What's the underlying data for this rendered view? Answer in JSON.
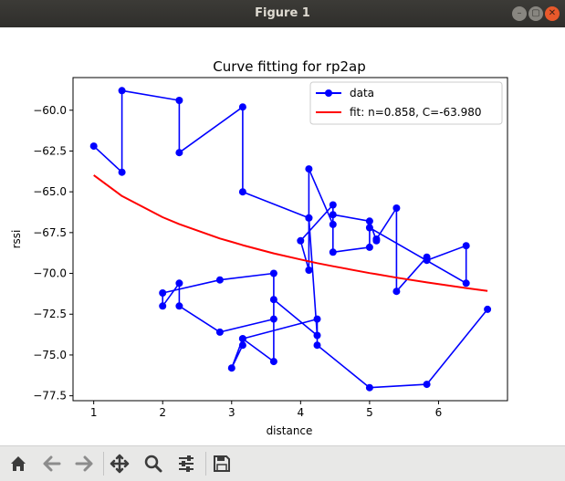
{
  "window": {
    "title": "Figure 1"
  },
  "toolbar": {
    "buttons": [
      {
        "name": "home-button",
        "icon": "home-icon"
      },
      {
        "name": "back-button",
        "icon": "arrow-left-icon"
      },
      {
        "name": "forward-button",
        "icon": "arrow-right-icon"
      },
      {
        "name": "pan-button",
        "icon": "move-icon"
      },
      {
        "name": "zoom-button",
        "icon": "magnifier-icon"
      },
      {
        "name": "configure-subplots-button",
        "icon": "sliders-icon"
      },
      {
        "name": "save-button",
        "icon": "floppy-disk-icon"
      }
    ]
  },
  "chart_data": {
    "type": "line",
    "title": "Curve fitting for rp2ap",
    "xlabel": "distance",
    "ylabel": "rssi",
    "xlim": [
      0.7,
      7.0
    ],
    "ylim": [
      -77.8,
      -58.0
    ],
    "xticks": [
      1,
      2,
      3,
      4,
      5,
      6
    ],
    "yticks": [
      -60.0,
      -62.5,
      -65.0,
      -67.5,
      -70.0,
      -72.5,
      -75.0,
      -77.5
    ],
    "ytick_labels": [
      "−60.0",
      "−62.5",
      "−65.0",
      "−67.5",
      "−70.0",
      "−72.5",
      "−75.0",
      "−77.5"
    ],
    "legend_position": "top-right",
    "grid": false,
    "series": [
      {
        "name": "data",
        "color": "#0000ff",
        "marker": "circle",
        "x": [
          1.0,
          1.41,
          1.41,
          2.24,
          2.24,
          3.16,
          3.16,
          4.12,
          4.12,
          4.47,
          4.47,
          5.0,
          5.1,
          5.1,
          5.39,
          5.39,
          5.83,
          5.83,
          6.4,
          6.4,
          5.0,
          5.0,
          4.47,
          4.47,
          4.0,
          4.12,
          4.12,
          4.24,
          3.61,
          3.61,
          2.83,
          2.24,
          2.24,
          2.0,
          2.0,
          2.83,
          3.61,
          3.61,
          3.16,
          3.0,
          3.16,
          3.16,
          4.24,
          4.24,
          5.0,
          5.83,
          6.71
        ],
        "y": [
          -62.2,
          -63.8,
          -58.8,
          -59.4,
          -62.6,
          -59.8,
          -65.0,
          -66.6,
          -63.6,
          -67.0,
          -66.4,
          -66.8,
          -68.0,
          -67.9,
          -66.0,
          -71.1,
          -69.0,
          -69.2,
          -68.3,
          -70.6,
          -67.2,
          -68.4,
          -68.7,
          -65.8,
          -68.0,
          -69.8,
          -66.6,
          -73.8,
          -71.6,
          -72.8,
          -73.6,
          -72.0,
          -70.6,
          -72.0,
          -71.2,
          -70.4,
          -70.0,
          -75.4,
          -74.0,
          -75.8,
          -74.4,
          -74.0,
          -72.8,
          -74.4,
          -77.0,
          -76.8,
          -72.2
        ]
      },
      {
        "name": "fit: n=0.858, C=-63.980",
        "color": "#ff0000",
        "marker": "none",
        "x": [
          1.0,
          1.41,
          2.0,
          2.24,
          2.83,
          3.0,
          3.16,
          3.61,
          4.0,
          4.12,
          4.24,
          4.47,
          5.0,
          5.1,
          5.39,
          5.83,
          6.4,
          6.71
        ],
        "y": [
          -63.98,
          -65.26,
          -66.56,
          -66.98,
          -67.86,
          -68.07,
          -68.27,
          -68.77,
          -69.15,
          -69.26,
          -69.37,
          -69.56,
          -69.98,
          -70.05,
          -70.26,
          -70.55,
          -70.9,
          -71.07
        ]
      }
    ]
  }
}
